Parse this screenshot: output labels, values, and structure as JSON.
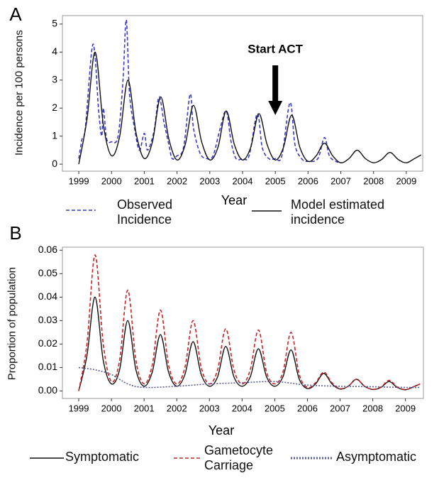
{
  "chart_data": [
    {
      "type": "line",
      "panel": "A",
      "xlabel": "Year",
      "ylabel": "Incidence per 100 persons",
      "annotation": "Start ACT",
      "xlim": [
        1998.5,
        2009.5
      ],
      "xticks": [
        1999,
        2000,
        2001,
        2002,
        2003,
        2004,
        2005,
        2006,
        2007,
        2008,
        2009
      ],
      "ylim": [
        -0.25,
        5.3
      ],
      "yticks": [
        0,
        1,
        2,
        3,
        4,
        5
      ],
      "series": [
        {
          "name": "Observed Incidence",
          "color": "#3a3acc",
          "style": "dashed",
          "x": [
            1999.0,
            1999.1,
            1999.2,
            1999.4,
            1999.5,
            1999.6,
            1999.7,
            1999.75,
            1999.85,
            2000.0,
            2000.2,
            2000.35,
            2000.45,
            2000.55,
            2000.7,
            2000.85,
            2001.0,
            2001.1,
            2001.3,
            2001.45,
            2001.6,
            2001.75,
            2001.85,
            2002.0,
            2002.2,
            2002.4,
            2002.5,
            2002.7,
            2002.9,
            2003.1,
            2003.3,
            2003.5,
            2003.65,
            2003.8,
            2004.0,
            2004.2,
            2004.45,
            2004.6,
            2004.8,
            2005.0,
            2005.2,
            2005.45,
            2005.6,
            2005.8,
            2006.0,
            2006.3,
            2006.5,
            2006.65,
            2006.85,
            2007.0
          ],
          "values": [
            0.2,
            0.9,
            1.3,
            4.1,
            3.8,
            2.0,
            1.0,
            2.0,
            0.9,
            0.8,
            1.0,
            3.0,
            5.15,
            2.5,
            1.3,
            0.5,
            1.1,
            0.5,
            1.2,
            2.4,
            1.5,
            0.7,
            0.2,
            0.3,
            0.6,
            2.5,
            1.3,
            0.4,
            0.2,
            0.3,
            1.2,
            1.9,
            0.8,
            0.2,
            0.2,
            0.3,
            1.8,
            0.6,
            0.2,
            0.2,
            0.3,
            2.2,
            0.7,
            0.2,
            0.1,
            0.2,
            0.95,
            0.3,
            0.1,
            0.05
          ]
        },
        {
          "name": "Model estimated incidence",
          "color": "#111111",
          "style": "solid",
          "x": [
            1999.0,
            1999.25,
            1999.5,
            1999.75,
            2000.0,
            2000.25,
            2000.5,
            2000.75,
            2001.0,
            2001.25,
            2001.5,
            2001.75,
            2002.0,
            2002.25,
            2002.5,
            2002.75,
            2003.0,
            2003.25,
            2003.5,
            2003.75,
            2004.0,
            2004.25,
            2004.5,
            2004.75,
            2005.0,
            2005.25,
            2005.5,
            2005.75,
            2006.0,
            2006.25,
            2006.5,
            2006.75,
            2007.0,
            2007.25,
            2007.5,
            2007.75,
            2008.0,
            2008.25,
            2008.5,
            2008.75,
            2009.0,
            2009.25,
            2009.45
          ],
          "values": [
            0,
            1.6,
            4.0,
            1.4,
            0.3,
            1.0,
            3.0,
            1.1,
            0.2,
            0.8,
            2.4,
            0.9,
            0.15,
            0.7,
            2.1,
            0.8,
            0.15,
            0.6,
            1.9,
            0.7,
            0.15,
            0.6,
            1.8,
            0.7,
            0.15,
            0.6,
            1.75,
            0.6,
            0.1,
            0.3,
            0.75,
            0.3,
            0.05,
            0.2,
            0.5,
            0.2,
            0.05,
            0.17,
            0.42,
            0.17,
            0.05,
            0.2,
            0.33
          ]
        }
      ]
    },
    {
      "type": "line",
      "panel": "B",
      "xlabel": "Year",
      "ylabel": "Proportion of population",
      "xlim": [
        1998.5,
        2009.55
      ],
      "xticks": [
        1999,
        2000,
        2001,
        2002,
        2003,
        2004,
        2005,
        2006,
        2007,
        2008,
        2009
      ],
      "ylim": [
        -0.0032,
        0.0613
      ],
      "yticks": [
        {
          "value": 0,
          "label": "0.00"
        },
        0.01,
        0.02,
        0.03,
        0.04,
        0.05,
        0.06
      ],
      "series": [
        {
          "name": "Symptomatic",
          "color": "#111111",
          "style": "solid",
          "x": [
            1999.0,
            1999.25,
            1999.5,
            1999.75,
            2000.0,
            2000.25,
            2000.5,
            2000.75,
            2001.0,
            2001.25,
            2001.5,
            2001.75,
            2002.0,
            2002.25,
            2002.5,
            2002.75,
            2003.0,
            2003.25,
            2003.5,
            2003.75,
            2004.0,
            2004.25,
            2004.5,
            2004.75,
            2005.0,
            2005.25,
            2005.5,
            2005.75,
            2006.0,
            2006.25,
            2006.5,
            2006.75,
            2007.0,
            2007.25,
            2007.5,
            2007.75,
            2008.0,
            2008.25,
            2008.5,
            2008.75,
            2009.0,
            2009.25,
            2009.45
          ],
          "values": [
            0,
            0.015,
            0.04,
            0.013,
            0.003,
            0.009,
            0.03,
            0.009,
            0.002,
            0.008,
            0.024,
            0.008,
            0.002,
            0.007,
            0.021,
            0.007,
            0.002,
            0.006,
            0.019,
            0.006,
            0.002,
            0.006,
            0.018,
            0.006,
            0.002,
            0.006,
            0.0175,
            0.005,
            0.001,
            0.003,
            0.0075,
            0.003,
            0.0008,
            0.002,
            0.005,
            0.002,
            0.0006,
            0.0015,
            0.004,
            0.0015,
            0.0005,
            0.0018,
            0.003
          ]
        },
        {
          "name": "Gametocyte Carriage",
          "color": "#cc2222",
          "style": "dashed",
          "x": [
            1999.0,
            1999.25,
            1999.5,
            1999.75,
            2000.0,
            2000.25,
            2000.5,
            2000.75,
            2001.0,
            2001.25,
            2001.5,
            2001.75,
            2002.0,
            2002.25,
            2002.5,
            2002.75,
            2003.0,
            2003.25,
            2003.5,
            2003.75,
            2004.0,
            2004.25,
            2004.5,
            2004.75,
            2005.0,
            2005.25,
            2005.5,
            2005.75,
            2006.0,
            2006.25,
            2006.5,
            2006.75,
            2007.0,
            2007.25,
            2007.5,
            2007.75,
            2008.0,
            2008.25,
            2008.5,
            2008.75,
            2009.0,
            2009.25,
            2009.45
          ],
          "values": [
            0,
            0.02,
            0.058,
            0.02,
            0.004,
            0.013,
            0.043,
            0.013,
            0.003,
            0.011,
            0.0345,
            0.011,
            0.003,
            0.01,
            0.03,
            0.01,
            0.003,
            0.009,
            0.0265,
            0.009,
            0.003,
            0.009,
            0.026,
            0.008,
            0.003,
            0.008,
            0.025,
            0.007,
            0.0015,
            0.0035,
            0.008,
            0.0035,
            0.001,
            0.002,
            0.005,
            0.002,
            0.0007,
            0.0017,
            0.0045,
            0.0017,
            0.0006,
            0.0018,
            0.003
          ]
        },
        {
          "name": "Asymptomatic",
          "color": "#5a5a9a",
          "style": "dotted",
          "x": [
            1999.0,
            1999.5,
            2000.0,
            2000.5,
            2001.0,
            2002.0,
            2003.0,
            2004.0,
            2005.0,
            2006.0,
            2007.0,
            2008.0,
            2009.0,
            2009.45
          ],
          "values": [
            0.01,
            0.009,
            0.007,
            0.003,
            0.0015,
            0.002,
            0.003,
            0.0035,
            0.004,
            0.0025,
            0.002,
            0.0018,
            0.0015,
            0.0015
          ]
        }
      ]
    }
  ]
}
